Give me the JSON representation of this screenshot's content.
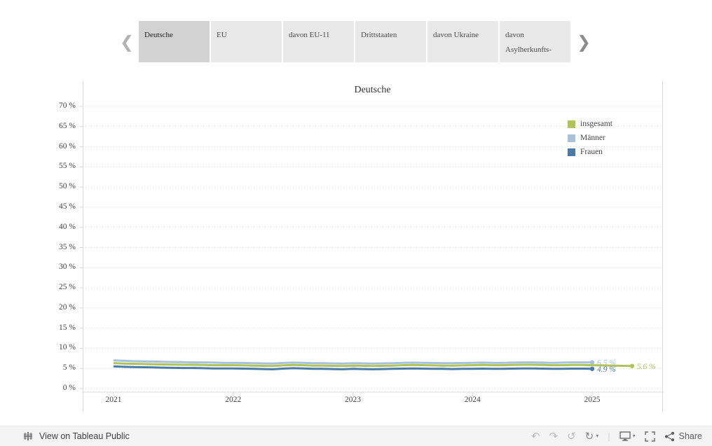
{
  "tabs": {
    "items": [
      {
        "label": "Deutsche",
        "selected": true
      },
      {
        "label": "EU",
        "selected": false
      },
      {
        "label": "davon EU-11",
        "selected": false
      },
      {
        "label": "Drittstaaten",
        "selected": false
      },
      {
        "label": "davon Ukraine",
        "selected": false
      },
      {
        "label": "davon Asylherkunfts-",
        "selected": false
      }
    ]
  },
  "chart_data": {
    "type": "line",
    "title": "Deutsche",
    "xlabel": "",
    "ylabel": "",
    "grid": "dotted-horizontal",
    "legend_position": "top-right-inside",
    "x_start": 2021,
    "x_step": 0.0833333,
    "x_tick_values": [
      2021,
      2022,
      2023,
      2024,
      2025
    ],
    "x_tick_labels": [
      "2021",
      "2022",
      "2023",
      "2024",
      "2025"
    ],
    "y_ticks": [
      0,
      5,
      10,
      15,
      20,
      25,
      30,
      35,
      40,
      45,
      50,
      55,
      60,
      65,
      70
    ],
    "y_tick_suffix": " %",
    "ylim": [
      0,
      70
    ],
    "series": [
      {
        "name": "insgesamt",
        "color": "#b2c25b",
        "end_label": "5.6 %",
        "values": [
          6.3,
          6.2,
          6.15,
          6.1,
          6.05,
          6.0,
          5.95,
          5.9,
          5.9,
          5.85,
          5.8,
          5.8,
          5.8,
          5.75,
          5.7,
          5.65,
          5.6,
          5.75,
          5.85,
          5.8,
          5.7,
          5.7,
          5.65,
          5.6,
          5.7,
          5.65,
          5.6,
          5.65,
          5.7,
          5.8,
          5.85,
          5.8,
          5.75,
          5.7,
          5.7,
          5.75,
          5.8,
          5.85,
          5.8,
          5.8,
          5.85,
          5.9,
          5.9,
          5.85,
          5.8,
          5.8,
          5.85,
          5.85,
          5.8,
          5.75,
          5.7,
          5.65,
          5.6
        ]
      },
      {
        "name": "Männer",
        "color": "#a8c2da",
        "end_label": "6.5 %",
        "values": [
          7.0,
          6.9,
          6.8,
          6.75,
          6.7,
          6.65,
          6.6,
          6.55,
          6.5,
          6.5,
          6.45,
          6.4,
          6.4,
          6.35,
          6.3,
          6.25,
          6.2,
          6.35,
          6.45,
          6.4,
          6.3,
          6.3,
          6.25,
          6.2,
          6.3,
          6.25,
          6.2,
          6.25,
          6.3,
          6.4,
          6.45,
          6.4,
          6.35,
          6.3,
          6.3,
          6.35,
          6.4,
          6.45,
          6.4,
          6.4,
          6.45,
          6.5,
          6.5,
          6.45,
          6.4,
          6.45,
          6.5,
          6.5,
          6.5
        ]
      },
      {
        "name": "Frauen",
        "color": "#4a7aa7",
        "end_label": "4.9 %",
        "values": [
          5.5,
          5.4,
          5.35,
          5.3,
          5.25,
          5.2,
          5.15,
          5.1,
          5.1,
          5.05,
          5.0,
          5.0,
          5.0,
          4.95,
          4.9,
          4.85,
          4.8,
          4.95,
          5.05,
          5.0,
          4.9,
          4.9,
          4.85,
          4.8,
          4.9,
          4.85,
          4.8,
          4.85,
          4.9,
          4.95,
          5.0,
          4.95,
          4.9,
          4.9,
          4.85,
          4.9,
          4.9,
          4.95,
          4.9,
          4.9,
          4.95,
          5.0,
          5.0,
          4.95,
          4.9,
          4.9,
          4.95,
          4.95,
          4.9
        ]
      }
    ]
  },
  "tabnav": {
    "prev": "❮",
    "next": "❯"
  },
  "toolbar": {
    "view_label": "View on Tableau Public",
    "undo": "↶",
    "redo": "↷",
    "reset": "↺",
    "refresh": "↻",
    "caret": "▾",
    "separator": "|",
    "share_label": "Share"
  },
  "colors": {
    "tab_selected_bg": "#d2d2d2",
    "tab_bg": "#e9e9e9",
    "grid": "#d6d6d6",
    "axis": "#d9d9d9"
  }
}
